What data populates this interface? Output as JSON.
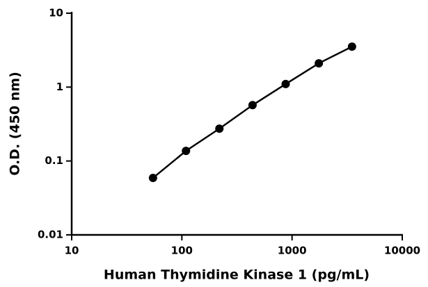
{
  "chart_data": {
    "type": "line",
    "x_label": "Human Thymidine Kinase 1 (pg/mL)",
    "y_label": "O.D. (450 nm)",
    "x": [
      54.7,
      109,
      219,
      438,
      875,
      1750,
      3500
    ],
    "series": [
      {
        "color": "#000000",
        "values": [
          0.059,
          0.137,
          0.274,
          0.57,
          1.1,
          2.1,
          3.53
        ]
      }
    ],
    "x_log": true,
    "y_log": true,
    "xlim": [
      10,
      10000
    ],
    "ylim": [
      0.01,
      10
    ],
    "xticks": [
      10,
      100,
      1000,
      10000
    ],
    "yticks": [
      0.01,
      0.1,
      1,
      10
    ],
    "grid": false
  }
}
